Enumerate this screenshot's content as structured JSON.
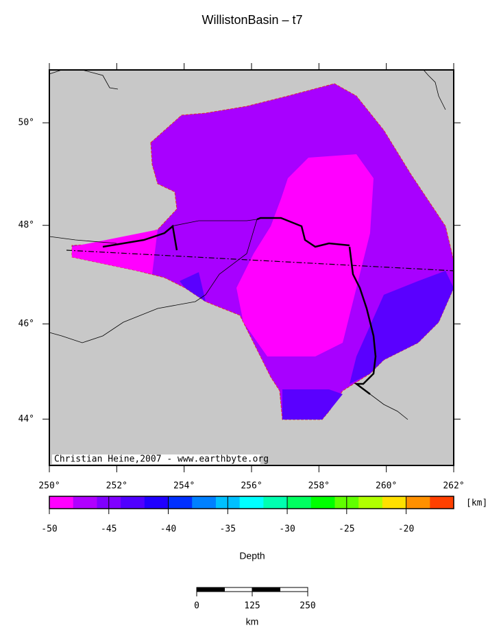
{
  "title": "WillistonBasin – t7",
  "map": {
    "xlim": [
      250,
      262
    ],
    "ylim": [
      43,
      51
    ],
    "xticks": [
      {
        "value": 250,
        "label": "250°"
      },
      {
        "value": 252,
        "label": "252°"
      },
      {
        "value": 254,
        "label": "254°"
      },
      {
        "value": 256,
        "label": "256°"
      },
      {
        "value": 258,
        "label": "258°"
      },
      {
        "value": 260,
        "label": "260°"
      },
      {
        "value": 262,
        "label": "262°"
      }
    ],
    "yticks": [
      {
        "value": 44,
        "label": "44°"
      },
      {
        "value": 46,
        "label": "46°"
      },
      {
        "value": 48,
        "label": "48°"
      },
      {
        "value": 50,
        "label": "50°"
      }
    ],
    "credit": "Christian Heine,2007 - www.earthbyte.org"
  },
  "colorbar": {
    "range": [
      -50,
      -16
    ],
    "unit": "[km]",
    "label": "Depth",
    "ticks": [
      -50,
      -45,
      -40,
      -35,
      -30,
      -25,
      -20
    ],
    "colors": [
      "#ff00ff",
      "#b000ff",
      "#8000ff",
      "#5000ff",
      "#2000ff",
      "#0030ff",
      "#0080ff",
      "#00c0ff",
      "#00ffff",
      "#00ffb0",
      "#00ff60",
      "#00ff00",
      "#60ff00",
      "#b0ff00",
      "#ffe000",
      "#ff9000",
      "#ff4000"
    ]
  },
  "scale_bar": {
    "ticks": [
      0,
      125,
      250
    ],
    "unit": "km"
  }
}
